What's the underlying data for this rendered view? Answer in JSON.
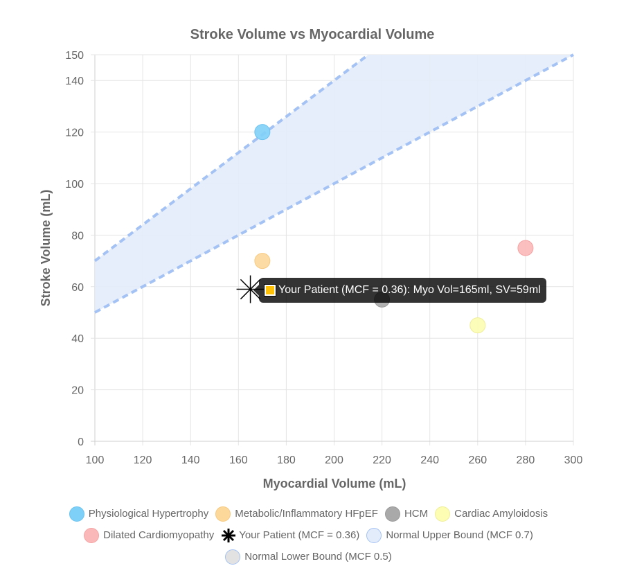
{
  "chart_data": {
    "type": "scatter",
    "title": "Stroke Volume vs Myocardial Volume",
    "xlabel": "Myocardial Volume (mL)",
    "ylabel": "Stroke Volume (mL)",
    "xlim": [
      100,
      300
    ],
    "ylim": [
      0,
      150
    ],
    "x_ticks": [
      100,
      120,
      140,
      160,
      180,
      200,
      220,
      240,
      260,
      280,
      300
    ],
    "y_ticks": [
      0,
      20,
      40,
      60,
      80,
      100,
      120,
      140,
      150
    ],
    "grid": true,
    "legend_position": "bottom",
    "series": [
      {
        "name": "Physiological Hypertrophy",
        "type": "scatter",
        "color": "#7fd0f8",
        "border": "#6cc3ef",
        "points": [
          {
            "x": 170,
            "y": 120
          }
        ]
      },
      {
        "name": "Metabolic/Inflammatory HFpEF",
        "type": "scatter",
        "color": "#fcd89a",
        "border": "#f6c980",
        "points": [
          {
            "x": 170,
            "y": 70
          }
        ]
      },
      {
        "name": "HCM",
        "type": "scatter",
        "color": "#a9a9a9",
        "border": "#9a9a9a",
        "points": [
          {
            "x": 220,
            "y": 55
          }
        ]
      },
      {
        "name": "Cardiac Amyloidosis",
        "type": "scatter",
        "color": "#fdfdb3",
        "border": "#eeee99",
        "points": [
          {
            "x": 260,
            "y": 45
          }
        ]
      },
      {
        "name": "Dilated Cardiomyopathy",
        "type": "scatter",
        "color": "#fbb8b8",
        "border": "#f5a3a3",
        "points": [
          {
            "x": 280,
            "y": 75
          }
        ]
      },
      {
        "name": "Your Patient (MCF = 0.36)",
        "type": "scatter",
        "marker": "star",
        "color": "#000000",
        "points": [
          {
            "x": 165,
            "y": 59
          }
        ]
      },
      {
        "name": "Normal Upper Bound (MCF 0.7)",
        "type": "line",
        "dashed": true,
        "color": "#a4c2f4",
        "fill": "#e3ecfb",
        "points": [
          {
            "x": 100,
            "y": 70
          },
          {
            "x": 214.3,
            "y": 150
          }
        ]
      },
      {
        "name": "Normal Lower Bound (MCF 0.5)",
        "type": "line",
        "dashed": true,
        "color": "#a4c2f4",
        "points": [
          {
            "x": 100,
            "y": 50
          },
          {
            "x": 300,
            "y": 150
          }
        ]
      }
    ]
  },
  "tooltip": {
    "text": "Your Patient (MCF = 0.36): Myo Vol=165ml, SV=59ml",
    "swatch_color": "#ffc107"
  },
  "legend": {
    "items": [
      {
        "label": "Physiological Hypertrophy",
        "fill": "#7fd0f8",
        "border": "#6cc3ef"
      },
      {
        "label": "Metabolic/Inflammatory HFpEF",
        "fill": "#fcd89a",
        "border": "#f6c980"
      },
      {
        "label": "HCM",
        "fill": "#a9a9a9",
        "border": "#9a9a9a"
      },
      {
        "label": "Cardiac Amyloidosis",
        "fill": "#fdfdb3",
        "border": "#eeee99"
      },
      {
        "label": "Dilated Cardiomyopathy",
        "fill": "#fbb8b8",
        "border": "#f5a3a3"
      },
      {
        "label": "Your Patient (MCF = 0.36)",
        "fill": "#000000",
        "border": "#000000"
      },
      {
        "label": "Normal Upper Bound (MCF 0.7)",
        "fill": "#e3ecfb",
        "border": "#a4c2f4"
      },
      {
        "label": "Normal Lower Bound (MCF 0.5)",
        "fill": "#e2e2e2",
        "border": "#a4c2f4"
      }
    ]
  }
}
